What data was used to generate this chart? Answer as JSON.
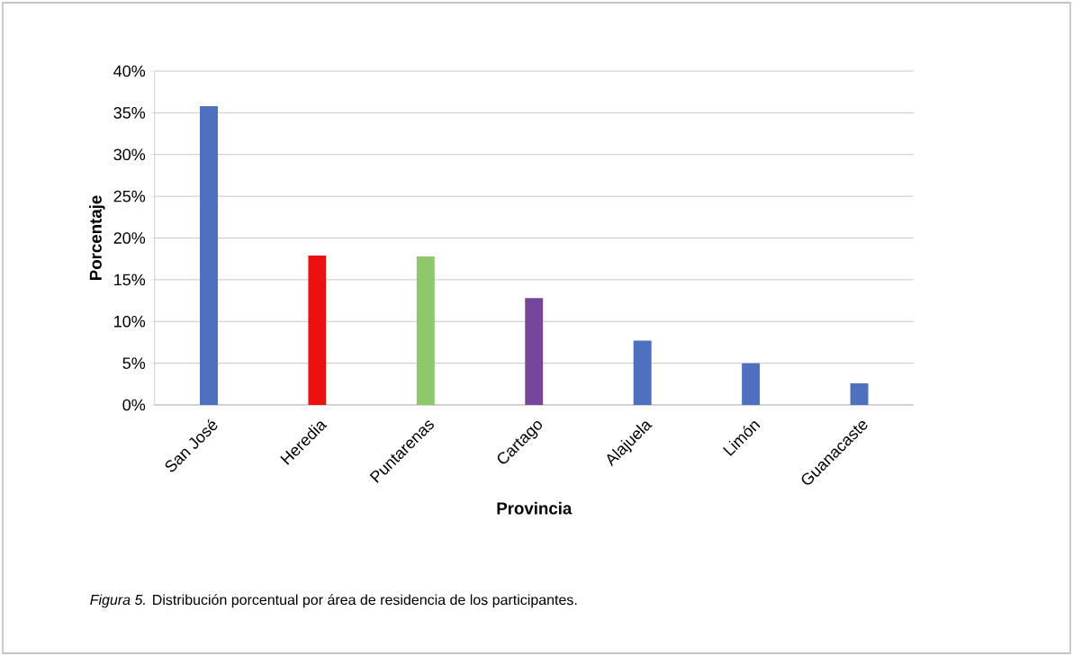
{
  "chart_data": {
    "type": "bar",
    "categories": [
      "San José",
      "Heredia",
      "Puntarenas",
      "Cartago",
      "Alajuela",
      "Limón",
      "Guanacaste"
    ],
    "values": [
      35.8,
      17.9,
      17.8,
      12.8,
      7.7,
      5.0,
      2.6
    ],
    "colors": [
      "#4f6fc0",
      "#ee1010",
      "#8ec86a",
      "#74479a",
      "#4f6fc0",
      "#4f6fc0",
      "#4f6fc0"
    ],
    "ylim": [
      0,
      40
    ],
    "yticks": [
      {
        "value": 0,
        "label": "0%"
      },
      {
        "value": 5,
        "label": "5%"
      },
      {
        "value": 10,
        "label": "10%"
      },
      {
        "value": 15,
        "label": "15%"
      },
      {
        "value": 20,
        "label": "20%"
      },
      {
        "value": 25,
        "label": "25%"
      },
      {
        "value": 30,
        "label": "30%"
      },
      {
        "value": 35,
        "label": "35%"
      },
      {
        "value": 40,
        "label": "40%"
      }
    ],
    "grid": "y",
    "xlabel": "Provincia",
    "ylabel": "Porcentaje",
    "annotations": [
      "*Figura 5.* Distribución porcentual por área de residencia de los participantes."
    ]
  }
}
